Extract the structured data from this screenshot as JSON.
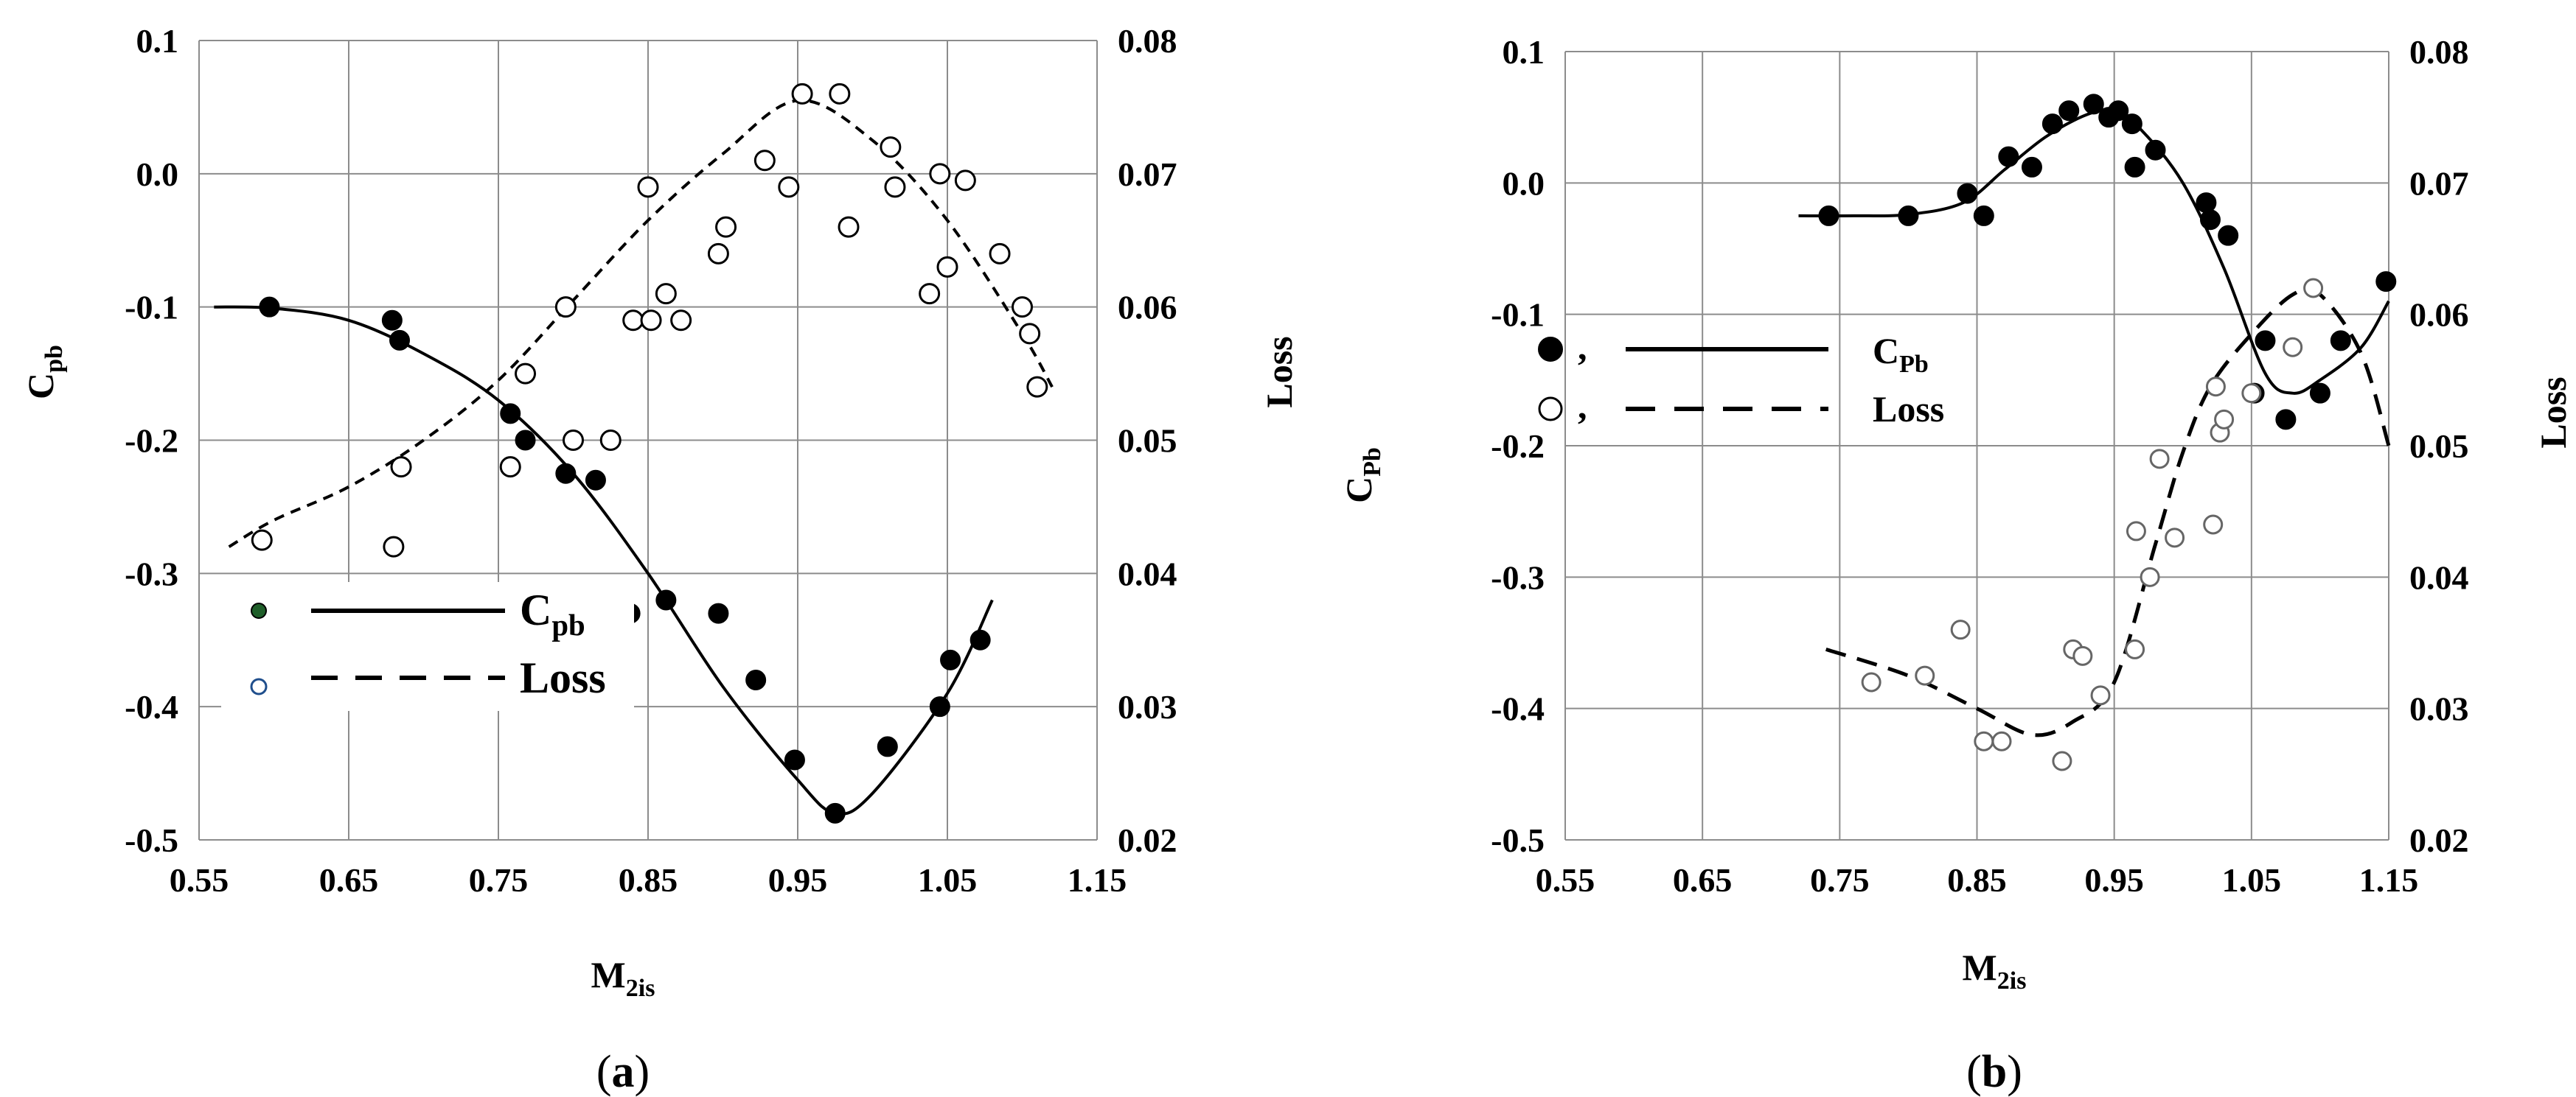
{
  "panels": [
    {
      "caption": {
        "open": "(",
        "letter": "a",
        "close": ")"
      },
      "legend": {
        "cpb_main": "C",
        "cpb_sub": "pb",
        "loss": "Loss",
        "cpb_marker_color": "#1f5f2a",
        "loss_marker_color": "#1f4e8c"
      },
      "y_left_label": {
        "main": "C",
        "sub": "pb"
      },
      "y_right_label": "Loss",
      "x_label": {
        "main": "M",
        "sub": "2is"
      }
    },
    {
      "caption": {
        "open": "(",
        "letter": "b",
        "close": ")"
      },
      "legend": {
        "comma": ",",
        "cpb_main": "C",
        "cpb_sub": "Pb",
        "loss": "Loss"
      },
      "y_left_label": {
        "main": "C",
        "sub": "Pb"
      },
      "y_right_label": "Loss",
      "x_label": {
        "main": "M",
        "sub": "2is"
      }
    }
  ],
  "chart_data": [
    {
      "type": "scatter",
      "x_ticks": [
        "0.55",
        "0.65",
        "0.75",
        "0.85",
        "0.95",
        "1.05",
        "1.15"
      ],
      "y_left_ticks": [
        "0.1",
        "0.0",
        "-0.1",
        "-0.2",
        "-0.3",
        "-0.4",
        "-0.5"
      ],
      "y_right_ticks": [
        "0.08",
        "0.07",
        "0.06",
        "0.05",
        "0.04",
        "0.03",
        "0.02"
      ],
      "xlim": [
        0.55,
        1.15
      ],
      "ylim_left": [
        -0.5,
        0.1
      ],
      "ylim_right": [
        0.02,
        0.08
      ],
      "grid": true,
      "legend_position": "lower-left",
      "series": [
        {
          "name": "Cpb",
          "axis": "left",
          "marker": "filled-circle",
          "points": [
            [
              0.597,
              -0.1
            ],
            [
              0.679,
              -0.11
            ],
            [
              0.684,
              -0.125
            ],
            [
              0.758,
              -0.18
            ],
            [
              0.768,
              -0.2
            ],
            [
              0.795,
              -0.225
            ],
            [
              0.815,
              -0.23
            ],
            [
              0.838,
              -0.33
            ],
            [
              0.862,
              -0.32
            ],
            [
              0.897,
              -0.33
            ],
            [
              0.922,
              -0.38
            ],
            [
              0.948,
              -0.44
            ],
            [
              0.975,
              -0.48
            ],
            [
              1.01,
              -0.43
            ],
            [
              1.045,
              -0.4
            ],
            [
              1.052,
              -0.365
            ],
            [
              1.072,
              -0.35
            ]
          ],
          "fit_line": "solid",
          "fit": [
            [
              0.56,
              -0.1
            ],
            [
              0.6,
              -0.101
            ],
            [
              0.65,
              -0.11
            ],
            [
              0.7,
              -0.135
            ],
            [
              0.75,
              -0.17
            ],
            [
              0.8,
              -0.225
            ],
            [
              0.85,
              -0.3
            ],
            [
              0.9,
              -0.385
            ],
            [
              0.95,
              -0.455
            ],
            [
              0.975,
              -0.48
            ],
            [
              1.0,
              -0.465
            ],
            [
              1.05,
              -0.39
            ],
            [
              1.08,
              -0.32
            ]
          ]
        },
        {
          "name": "Loss",
          "axis": "right",
          "marker": "open-circle",
          "points": [
            [
              0.592,
              0.0425
            ],
            [
              0.68,
              0.042
            ],
            [
              0.685,
              0.048
            ],
            [
              0.758,
              0.048
            ],
            [
              0.768,
              0.055
            ],
            [
              0.795,
              0.06
            ],
            [
              0.8,
              0.05
            ],
            [
              0.825,
              0.05
            ],
            [
              0.84,
              0.059
            ],
            [
              0.85,
              0.069
            ],
            [
              0.852,
              0.059
            ],
            [
              0.862,
              0.061
            ],
            [
              0.872,
              0.059
            ],
            [
              0.897,
              0.064
            ],
            [
              0.902,
              0.066
            ],
            [
              0.928,
              0.071
            ],
            [
              0.944,
              0.069
            ],
            [
              0.953,
              0.076
            ],
            [
              0.978,
              0.076
            ],
            [
              0.984,
              0.066
            ],
            [
              1.012,
              0.072
            ],
            [
              1.015,
              0.069
            ],
            [
              1.038,
              0.061
            ],
            [
              1.045,
              0.07
            ],
            [
              1.05,
              0.063
            ],
            [
              1.062,
              0.0695
            ],
            [
              1.085,
              0.064
            ],
            [
              1.1,
              0.06
            ],
            [
              1.105,
              0.058
            ],
            [
              1.11,
              0.054
            ]
          ],
          "fit_line": "dashed",
          "fit": [
            [
              0.57,
              0.042
            ],
            [
              0.6,
              0.044
            ],
            [
              0.65,
              0.0465
            ],
            [
              0.7,
              0.05
            ],
            [
              0.75,
              0.0545
            ],
            [
              0.8,
              0.0605
            ],
            [
              0.85,
              0.0665
            ],
            [
              0.9,
              0.0715
            ],
            [
              0.95,
              0.0755
            ],
            [
              1.0,
              0.0725
            ],
            [
              1.05,
              0.0665
            ],
            [
              1.1,
              0.058
            ],
            [
              1.12,
              0.054
            ]
          ]
        }
      ]
    },
    {
      "type": "scatter",
      "x_ticks": [
        "0.55",
        "0.65",
        "0.75",
        "0.85",
        "0.95",
        "1.05",
        "1.15"
      ],
      "y_left_ticks": [
        "0.1",
        "0.0",
        "-0.1",
        "-0.2",
        "-0.3",
        "-0.4",
        "-0.5"
      ],
      "y_right_ticks": [
        "0.08",
        "0.07",
        "0.06",
        "0.05",
        "0.04",
        "0.03",
        "0.02"
      ],
      "xlim": [
        0.55,
        1.15
      ],
      "ylim_left": [
        -0.5,
        0.1
      ],
      "ylim_right": [
        0.02,
        0.08
      ],
      "grid": true,
      "legend_position": "right-middle",
      "series": [
        {
          "name": "CPb",
          "axis": "left",
          "marker": "filled-circle",
          "points": [
            [
              0.742,
              -0.025
            ],
            [
              0.8,
              -0.025
            ],
            [
              0.843,
              -0.008
            ],
            [
              0.855,
              -0.025
            ],
            [
              0.873,
              0.02
            ],
            [
              0.89,
              0.012
            ],
            [
              0.905,
              0.045
            ],
            [
              0.917,
              0.055
            ],
            [
              0.935,
              0.06
            ],
            [
              0.946,
              0.05
            ],
            [
              0.953,
              0.055
            ],
            [
              0.963,
              0.045
            ],
            [
              0.965,
              0.012
            ],
            [
              0.98,
              0.025
            ],
            [
              1.017,
              -0.015
            ],
            [
              1.02,
              -0.028
            ],
            [
              1.033,
              -0.04
            ],
            [
              1.052,
              -0.16
            ],
            [
              1.06,
              -0.12
            ],
            [
              1.075,
              -0.18
            ],
            [
              1.1,
              -0.16
            ],
            [
              1.115,
              -0.12
            ],
            [
              1.148,
              -0.075
            ]
          ],
          "fit_line": "solid",
          "fit": [
            [
              0.72,
              -0.025
            ],
            [
              0.76,
              -0.025
            ],
            [
              0.8,
              -0.024
            ],
            [
              0.84,
              -0.015
            ],
            [
              0.87,
              0.01
            ],
            [
              0.9,
              0.035
            ],
            [
              0.93,
              0.052
            ],
            [
              0.95,
              0.055
            ],
            [
              0.97,
              0.04
            ],
            [
              1.0,
              0.0
            ],
            [
              1.03,
              -0.065
            ],
            [
              1.06,
              -0.145
            ],
            [
              1.08,
              -0.16
            ],
            [
              1.1,
              -0.15
            ],
            [
              1.13,
              -0.125
            ],
            [
              1.15,
              -0.09
            ]
          ]
        },
        {
          "name": "Loss",
          "axis": "right",
          "marker": "open-circle",
          "points": [
            [
              0.773,
              0.032
            ],
            [
              0.812,
              0.0325
            ],
            [
              0.838,
              0.036
            ],
            [
              0.855,
              0.0275
            ],
            [
              0.868,
              0.0275
            ],
            [
              0.912,
              0.026
            ],
            [
              0.92,
              0.0345
            ],
            [
              0.927,
              0.034
            ],
            [
              0.94,
              0.031
            ],
            [
              0.965,
              0.0345
            ],
            [
              0.966,
              0.0435
            ],
            [
              0.976,
              0.04
            ],
            [
              0.983,
              0.049
            ],
            [
              0.994,
              0.043
            ],
            [
              1.022,
              0.044
            ],
            [
              1.024,
              0.0545
            ],
            [
              1.027,
              0.051
            ],
            [
              1.03,
              0.052
            ],
            [
              1.05,
              0.054
            ],
            [
              1.08,
              0.0575
            ],
            [
              1.095,
              0.062
            ]
          ],
          "fit_line": "dashed",
          "fit": [
            [
              0.74,
              0.0345
            ],
            [
              0.8,
              0.0325
            ],
            [
              0.85,
              0.03
            ],
            [
              0.89,
              0.028
            ],
            [
              0.92,
              0.029
            ],
            [
              0.95,
              0.032
            ],
            [
              0.98,
              0.0425
            ],
            [
              1.0,
              0.0495
            ],
            [
              1.02,
              0.0545
            ],
            [
              1.05,
              0.0585
            ],
            [
              1.08,
              0.0615
            ],
            [
              1.1,
              0.0615
            ],
            [
              1.13,
              0.057
            ],
            [
              1.15,
              0.05
            ]
          ]
        }
      ]
    }
  ]
}
